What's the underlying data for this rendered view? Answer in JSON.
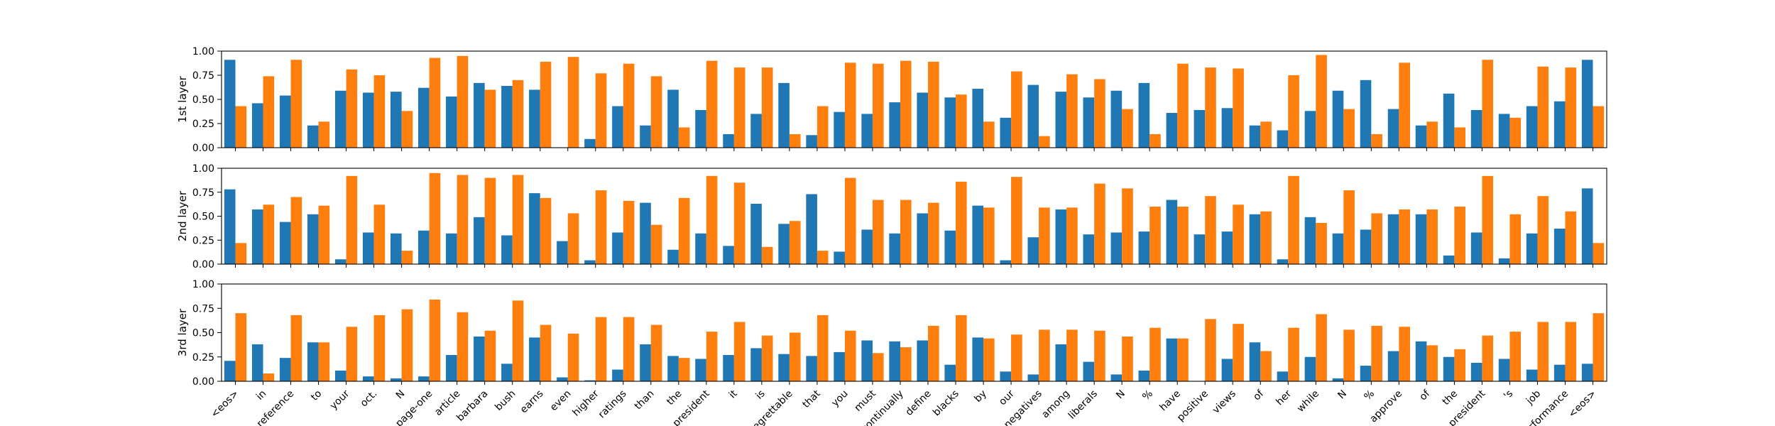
{
  "chart_data": {
    "type": "bar",
    "tokens": [
      "<eos>",
      "in",
      "reference",
      "to",
      "your",
      "oct.",
      "N",
      "page-one",
      "article",
      "barbara",
      "bush",
      "earns",
      "even",
      "higher",
      "ratings",
      "than",
      "the",
      "president",
      "it",
      "is",
      "regrettable",
      "that",
      "you",
      "must",
      "continually",
      "define",
      "blacks",
      "by",
      "our",
      "negatives",
      "among",
      "liberals",
      "N",
      "%",
      "have",
      "positive",
      "views",
      "of",
      "her",
      "while",
      "N",
      "%",
      "approve",
      "of",
      "the",
      "president",
      "'s",
      "job",
      "performance",
      "<eos>"
    ],
    "series_colors": [
      "#1f77b4",
      "#ff7f0e"
    ],
    "ylim": [
      0,
      1
    ],
    "yticks": [
      "0.00",
      "0.25",
      "0.50",
      "0.75",
      "1.00"
    ],
    "panels": [
      {
        "ylabel": "1st layer",
        "series": [
          {
            "values": [
              0.91,
              0.46,
              0.54,
              0.23,
              0.59,
              0.57,
              0.58,
              0.62,
              0.53,
              0.67,
              0.64,
              0.6,
              0.0,
              0.09,
              0.43,
              0.23,
              0.6,
              0.39,
              0.14,
              0.35,
              0.67,
              0.13,
              0.37,
              0.35,
              0.47,
              0.57,
              0.52,
              0.61,
              0.31,
              0.65,
              0.58,
              0.52,
              0.59,
              0.67,
              0.36,
              0.39,
              0.41,
              0.23,
              0.18,
              0.38,
              0.59,
              0.7,
              0.4,
              0.23,
              0.56,
              0.39,
              0.35,
              0.43,
              0.48,
              0.91
            ]
          },
          {
            "values": [
              0.43,
              0.74,
              0.91,
              0.27,
              0.81,
              0.75,
              0.38,
              0.93,
              0.95,
              0.6,
              0.7,
              0.89,
              0.94,
              0.77,
              0.87,
              0.74,
              0.21,
              0.9,
              0.83,
              0.83,
              0.14,
              0.43,
              0.88,
              0.87,
              0.9,
              0.89,
              0.55,
              0.27,
              0.79,
              0.12,
              0.76,
              0.71,
              0.4,
              0.14,
              0.87,
              0.83,
              0.82,
              0.27,
              0.75,
              0.96,
              0.4,
              0.14,
              0.88,
              0.27,
              0.21,
              0.91,
              0.31,
              0.84,
              0.83,
              0.43
            ]
          }
        ]
      },
      {
        "ylabel": "2nd layer",
        "series": [
          {
            "values": [
              0.78,
              0.57,
              0.44,
              0.52,
              0.05,
              0.33,
              0.32,
              0.35,
              0.32,
              0.49,
              0.3,
              0.74,
              0.24,
              0.04,
              0.33,
              0.64,
              0.15,
              0.32,
              0.19,
              0.63,
              0.42,
              0.73,
              0.13,
              0.36,
              0.32,
              0.53,
              0.35,
              0.61,
              0.04,
              0.28,
              0.57,
              0.31,
              0.33,
              0.34,
              0.67,
              0.31,
              0.34,
              0.52,
              0.05,
              0.49,
              0.32,
              0.36,
              0.52,
              0.52,
              0.09,
              0.33,
              0.06,
              0.32,
              0.37,
              0.79
            ]
          },
          {
            "values": [
              0.22,
              0.62,
              0.7,
              0.61,
              0.92,
              0.62,
              0.14,
              0.95,
              0.93,
              0.9,
              0.93,
              0.69,
              0.53,
              0.77,
              0.66,
              0.41,
              0.69,
              0.92,
              0.85,
              0.18,
              0.45,
              0.14,
              0.9,
              0.67,
              0.67,
              0.64,
              0.86,
              0.59,
              0.91,
              0.59,
              0.59,
              0.84,
              0.79,
              0.6,
              0.6,
              0.71,
              0.62,
              0.55,
              0.92,
              0.43,
              0.77,
              0.53,
              0.57,
              0.57,
              0.6,
              0.92,
              0.52,
              0.71,
              0.55,
              0.22
            ]
          }
        ]
      },
      {
        "ylabel": "3rd layer",
        "series": [
          {
            "values": [
              0.21,
              0.38,
              0.24,
              0.4,
              0.11,
              0.05,
              0.03,
              0.05,
              0.27,
              0.46,
              0.18,
              0.45,
              0.04,
              0.01,
              0.12,
              0.38,
              0.26,
              0.23,
              0.27,
              0.34,
              0.28,
              0.26,
              0.3,
              0.42,
              0.41,
              0.42,
              0.17,
              0.45,
              0.1,
              0.07,
              0.38,
              0.2,
              0.07,
              0.11,
              0.44,
              0.0,
              0.23,
              0.4,
              0.1,
              0.25,
              0.03,
              0.16,
              0.31,
              0.41,
              0.25,
              0.19,
              0.23,
              0.12,
              0.17,
              0.18
            ]
          },
          {
            "values": [
              0.7,
              0.08,
              0.68,
              0.4,
              0.56,
              0.68,
              0.74,
              0.84,
              0.71,
              0.52,
              0.83,
              0.58,
              0.49,
              0.66,
              0.66,
              0.58,
              0.24,
              0.51,
              0.61,
              0.47,
              0.5,
              0.68,
              0.52,
              0.29,
              0.35,
              0.57,
              0.68,
              0.44,
              0.48,
              0.53,
              0.53,
              0.52,
              0.46,
              0.55,
              0.44,
              0.64,
              0.59,
              0.31,
              0.55,
              0.69,
              0.53,
              0.57,
              0.56,
              0.37,
              0.33,
              0.47,
              0.51,
              0.61,
              0.61,
              0.7
            ]
          }
        ]
      }
    ]
  }
}
